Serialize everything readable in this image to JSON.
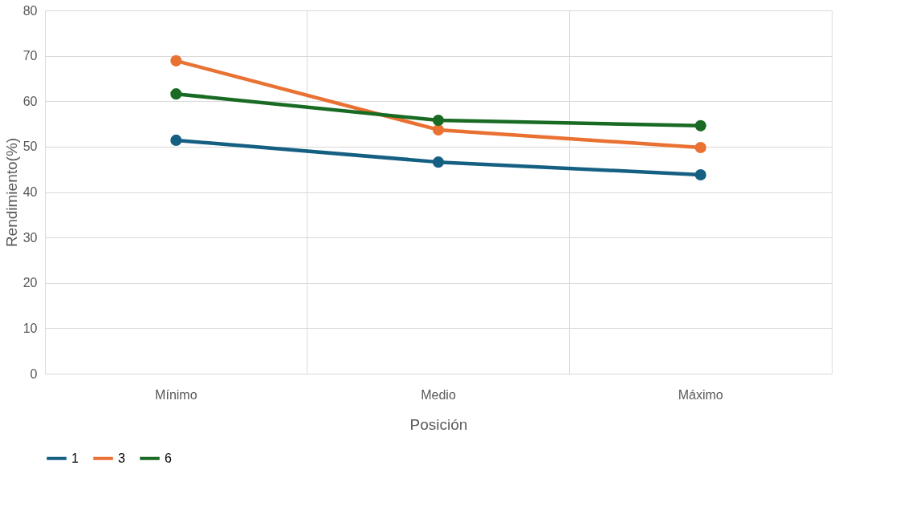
{
  "chart_data": {
    "type": "line",
    "xlabel": "Posición",
    "ylabel": "Rendimiento(%)",
    "categories": [
      "Mínimo",
      "Medio",
      "Máximo"
    ],
    "series": [
      {
        "name": "1",
        "color": "#156082",
        "values": [
          51.4,
          46.6,
          43.8
        ]
      },
      {
        "name": "3",
        "color": "#e97132",
        "values": [
          68.9,
          53.7,
          49.8
        ]
      },
      {
        "name": "6",
        "color": "#196b24",
        "values": [
          61.6,
          55.8,
          54.6
        ]
      }
    ],
    "ylim": [
      0,
      80
    ],
    "yticks": [
      0,
      10,
      20,
      30,
      40,
      50,
      60,
      70,
      80
    ],
    "grid": true,
    "legend": "bottom",
    "marker": "circle",
    "line_style": "solid"
  }
}
